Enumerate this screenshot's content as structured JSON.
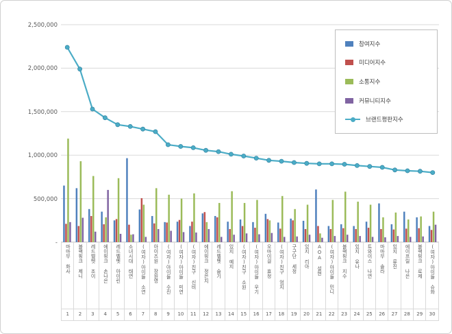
{
  "chart_data": {
    "type": "bar",
    "combo": "clustered bars with line overlay",
    "title": "",
    "categories": [
      "마마무 화사",
      "블랙핑크 제니",
      "레드벨벳 조이",
      "에이핑크 손나은",
      "레드벨벳 아이린",
      "소녀시대 태연",
      "(여자)아이들 소연",
      "아이즈원 장원영",
      "(여자)아이들 수진",
      "(여자)아이들 미연",
      "(여자)친구 신비",
      "에이핑크 정은지",
      "레드벨벳 슬기",
      "있지 예지",
      "(여자)친구 소원",
      "(여자)아이들 우기",
      "오마이걸 효정",
      "(여자)친구 엄지",
      "구구단 세정",
      "있지 리아",
      "AOA 설현",
      "(여자)아이들 민니",
      "블랙핑크 지수",
      "있지 유나",
      "트와이스 나연",
      "마마무 솔라",
      "있지 류진",
      "에이프릴 나은",
      "블랙핑크 로제",
      "(여자)아이들 슈화"
    ],
    "category_numbers": [
      "1",
      "2",
      "3",
      "4",
      "5",
      "6",
      "7",
      "8",
      "9",
      "10",
      "11",
      "12",
      "13",
      "14",
      "15",
      "16",
      "17",
      "18",
      "19",
      "20",
      "21",
      "22",
      "23",
      "24",
      "25",
      "26",
      "27",
      "28",
      "29",
      "30"
    ],
    "series": [
      {
        "name": "참여지수",
        "type": "bar",
        "color": "#4F81BD",
        "values": [
          650000,
          620000,
          380000,
          350000,
          250000,
          965000,
          375000,
          300000,
          230000,
          235000,
          185000,
          330000,
          300000,
          235000,
          260000,
          230000,
          325000,
          225000,
          270000,
          245000,
          605000,
          185000,
          205000,
          185000,
          235000,
          445000,
          205000,
          350000,
          285000,
          185000
        ]
      },
      {
        "name": "미디어지수",
        "type": "bar",
        "color": "#C0504D",
        "values": [
          210000,
          185000,
          300000,
          205000,
          265000,
          200000,
          505000,
          215000,
          225000,
          255000,
          235000,
          345000,
          285000,
          150000,
          185000,
          165000,
          265000,
          155000,
          250000,
          150000,
          185000,
          150000,
          160000,
          150000,
          165000,
          150000,
          145000,
          155000,
          160000,
          140000
        ]
      },
      {
        "name": "소통지수",
        "type": "bar",
        "color": "#9BBB59",
        "values": [
          1190000,
          930000,
          760000,
          285000,
          735000,
          85000,
          430000,
          620000,
          545000,
          500000,
          560000,
          230000,
          450000,
          585000,
          450000,
          485000,
          250000,
          530000,
          380000,
          430000,
          100000,
          485000,
          580000,
          465000,
          430000,
          285000,
          340000,
          260000,
          295000,
          350000
        ]
      },
      {
        "name": "커뮤니티지수",
        "type": "bar",
        "color": "#8064A2",
        "values": [
          230000,
          280000,
          120000,
          600000,
          95000,
          90000,
          60000,
          150000,
          130000,
          115000,
          110000,
          150000,
          60000,
          85000,
          100000,
          90000,
          105000,
          60000,
          65000,
          85000,
          50000,
          70000,
          85000,
          70000,
          60000,
          55000,
          70000,
          60000,
          65000,
          200000
        ]
      },
      {
        "name": "브랜드평판지수",
        "type": "line",
        "color": "#4BACC6",
        "values": [
          2240000,
          1990000,
          1530000,
          1430000,
          1350000,
          1330000,
          1300000,
          1270000,
          1120000,
          1100000,
          1085000,
          1055000,
          1040000,
          1010000,
          990000,
          965000,
          940000,
          930000,
          915000,
          905000,
          900000,
          900000,
          895000,
          880000,
          870000,
          860000,
          830000,
          820000,
          815000,
          800000
        ]
      }
    ],
    "ylim": [
      0,
      2500000
    ],
    "y_tick_step": 500000,
    "y_tick_labels": [
      "2,500,000",
      "2,000,000",
      "1,500,000",
      "1,000,000",
      "500,000",
      "-"
    ],
    "grid": true,
    "legend_position": "top-right"
  }
}
